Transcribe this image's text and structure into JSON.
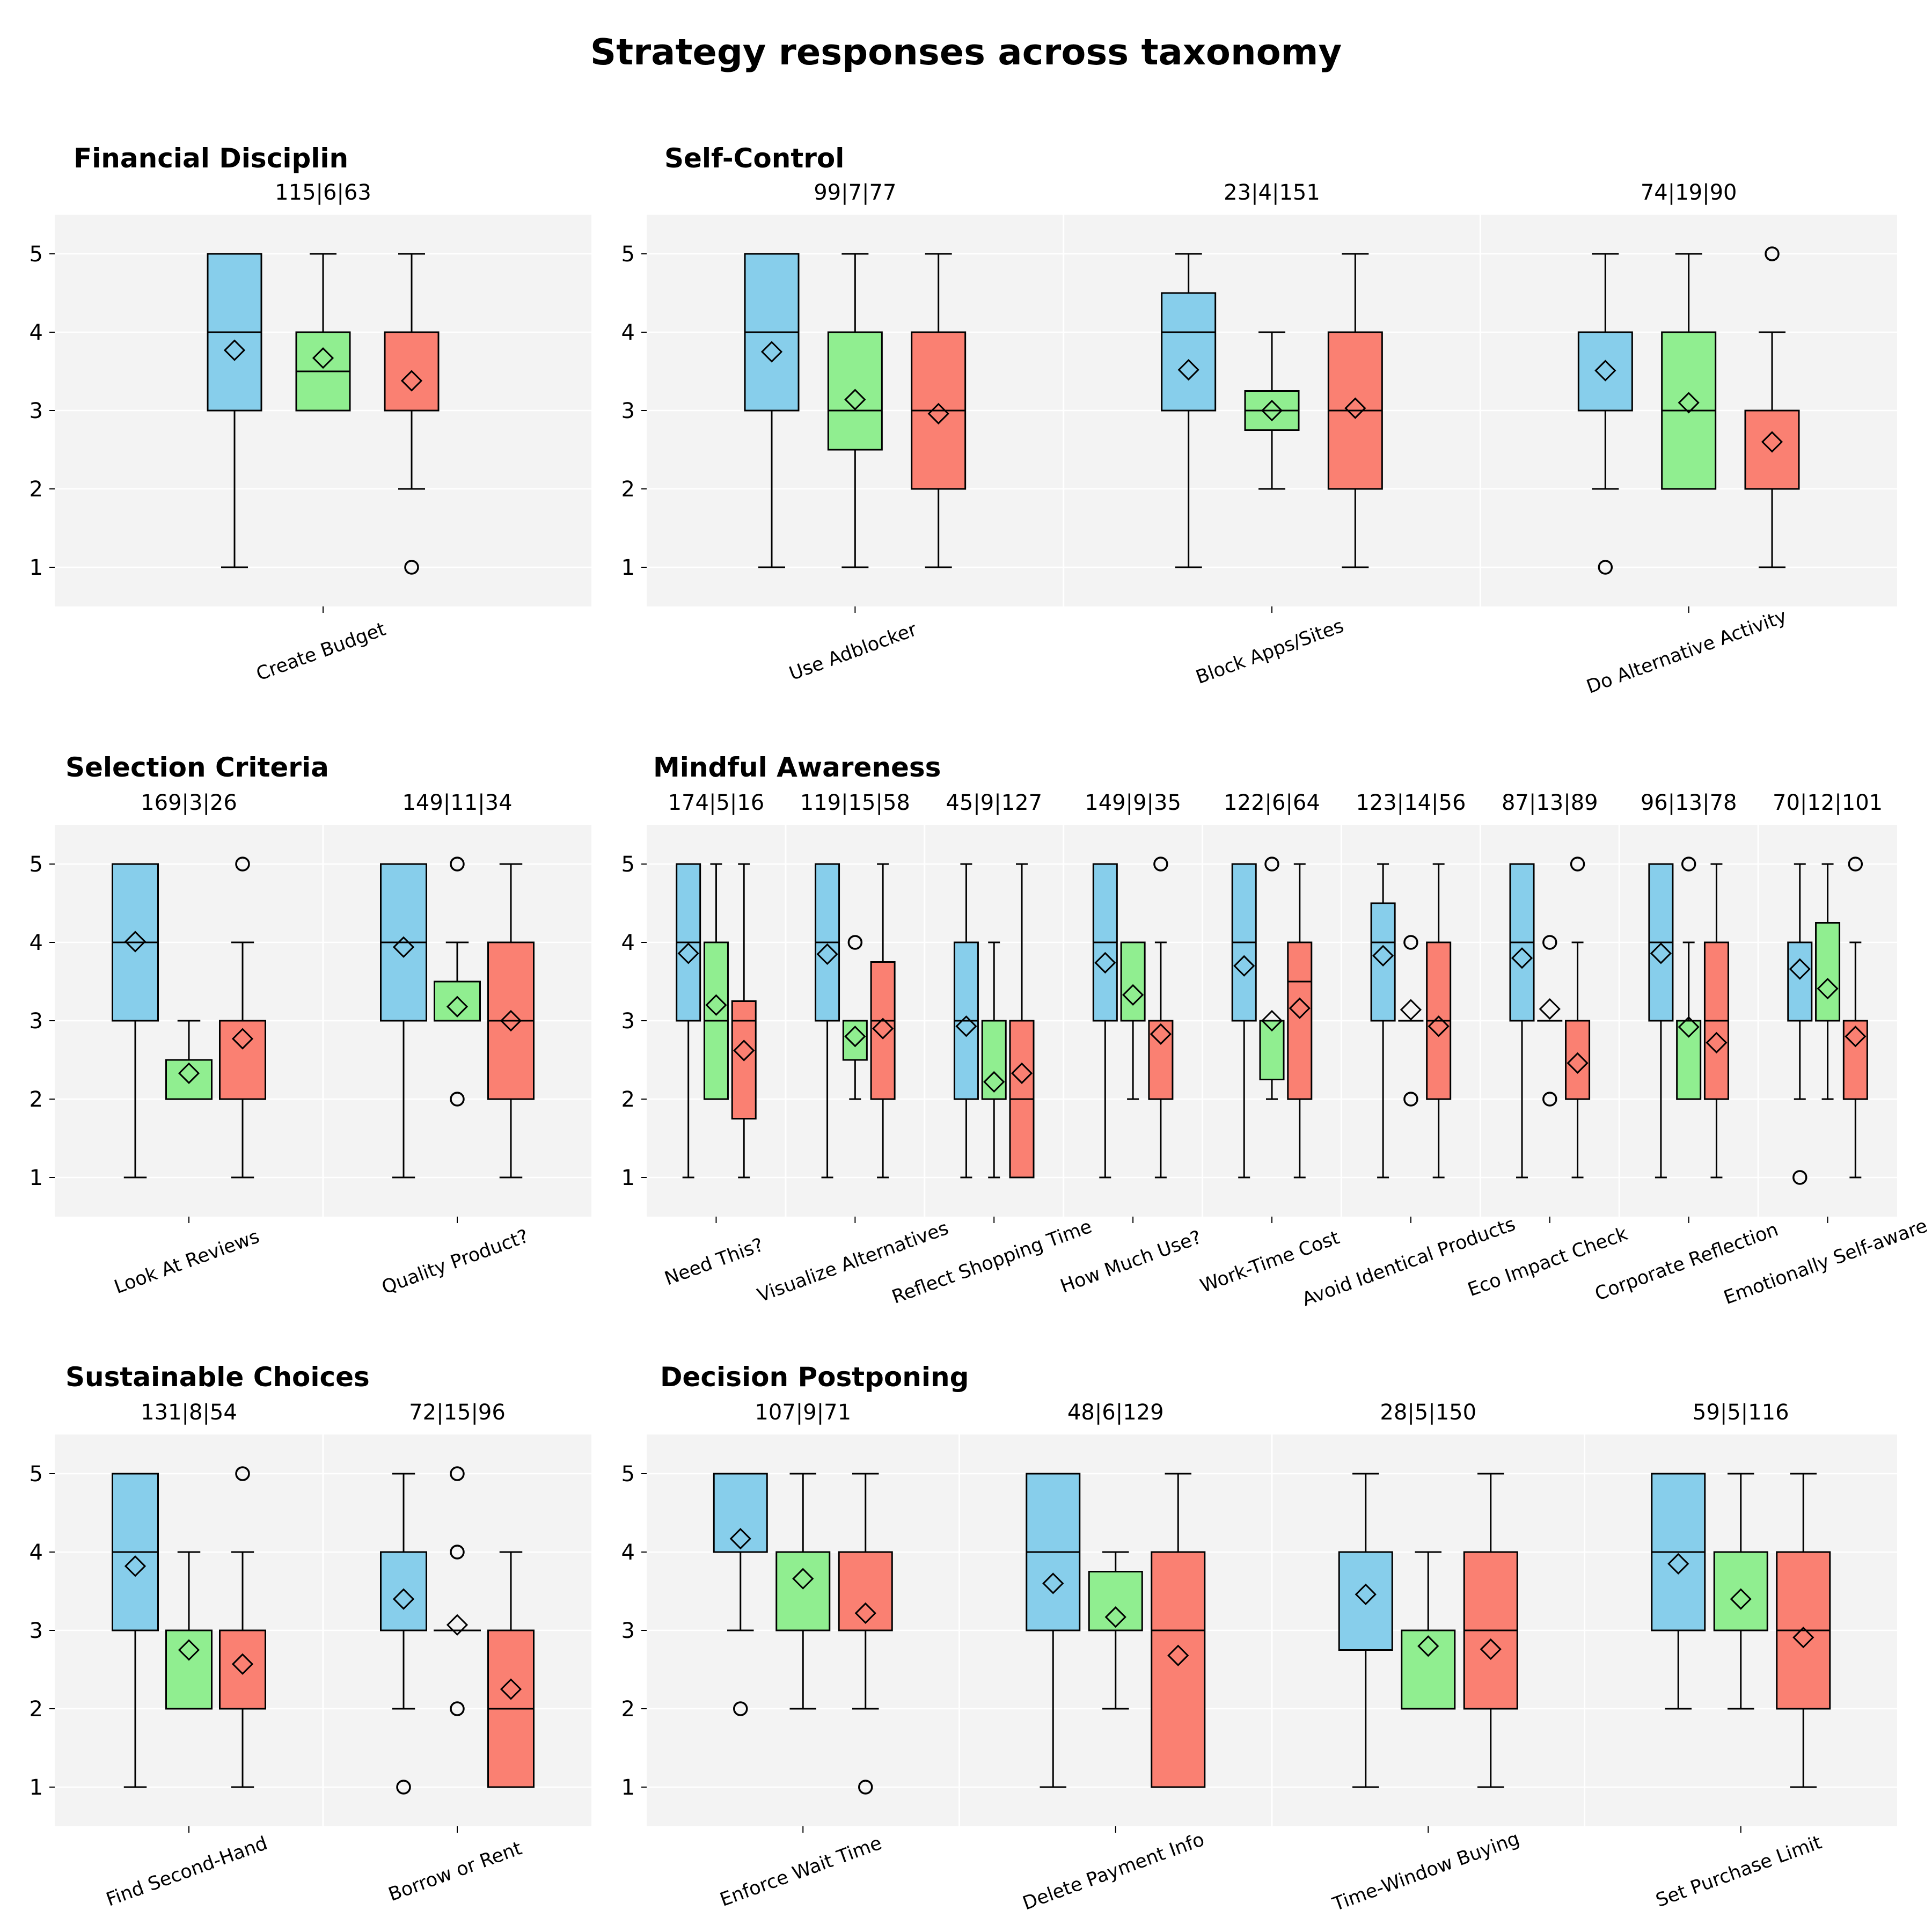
{
  "title": "Strategy responses across taxonomy",
  "colors": {
    "plot_background": "#f3f3f3",
    "grid": "#ffffff",
    "box_series": [
      "#87ceeb",
      "#90ee90",
      "#fa8072"
    ],
    "stroke": "#000000",
    "mean_marker_fill": "none"
  },
  "marker_legend": {
    "mean": "diamond-marker",
    "outlier": "circle-marker"
  },
  "chart_data": [
    {
      "type": "box",
      "title": "Financial Disciplin",
      "ylim": [
        0.5,
        5.5
      ],
      "yticks": [
        1,
        2,
        3,
        4,
        5
      ],
      "grid": true,
      "strategies": [
        {
          "name": "Create Budget",
          "counts": "115|6|63",
          "boxes": [
            {
              "q1": 3,
              "median": 4,
              "q3": 5,
              "whisker_low": 1,
              "whisker_high": 5,
              "mean": 3.77,
              "outliers": []
            },
            {
              "q1": 3,
              "median": 3.5,
              "q3": 4,
              "whisker_low": 3,
              "whisker_high": 5,
              "mean": 3.67,
              "outliers": []
            },
            {
              "q1": 3,
              "median": 3,
              "q3": 4,
              "whisker_low": 2,
              "whisker_high": 5,
              "mean": 3.38,
              "outliers": [
                1
              ]
            }
          ]
        }
      ]
    },
    {
      "type": "box",
      "title": "Self-Control",
      "ylim": [
        0.5,
        5.5
      ],
      "yticks": [
        1,
        2,
        3,
        4,
        5
      ],
      "grid": true,
      "strategies": [
        {
          "name": "Use Adblocker",
          "counts": "99|7|77",
          "boxes": [
            {
              "q1": 3,
              "median": 4,
              "q3": 5,
              "whisker_low": 1,
              "whisker_high": 5,
              "mean": 3.75,
              "outliers": []
            },
            {
              "q1": 2.5,
              "median": 3,
              "q3": 4,
              "whisker_low": 1,
              "whisker_high": 5,
              "mean": 3.14,
              "outliers": []
            },
            {
              "q1": 2,
              "median": 3,
              "q3": 4,
              "whisker_low": 1,
              "whisker_high": 5,
              "mean": 2.96,
              "outliers": []
            }
          ]
        },
        {
          "name": "Block Apps/Sites",
          "counts": "23|4|151",
          "boxes": [
            {
              "q1": 3,
              "median": 4,
              "q3": 4.5,
              "whisker_low": 1,
              "whisker_high": 5,
              "mean": 3.52,
              "outliers": []
            },
            {
              "q1": 2.75,
              "median": 3,
              "q3": 3.25,
              "whisker_low": 2,
              "whisker_high": 4,
              "mean": 3.0,
              "outliers": []
            },
            {
              "q1": 2,
              "median": 3,
              "q3": 4,
              "whisker_low": 1,
              "whisker_high": 5,
              "mean": 3.03,
              "outliers": []
            }
          ]
        },
        {
          "name": "Do Alternative Activity",
          "counts": "74|19|90",
          "boxes": [
            {
              "q1": 3,
              "median": 3,
              "q3": 4,
              "whisker_low": 2,
              "whisker_high": 5,
              "mean": 3.51,
              "outliers": [
                1
              ]
            },
            {
              "q1": 2,
              "median": 3,
              "q3": 4,
              "whisker_low": 2,
              "whisker_high": 5,
              "mean": 3.1,
              "outliers": []
            },
            {
              "q1": 2,
              "median": 2,
              "q3": 3,
              "whisker_low": 1,
              "whisker_high": 4,
              "mean": 2.6,
              "outliers": [
                5
              ]
            }
          ]
        }
      ]
    },
    {
      "type": "box",
      "title": "Selection Criteria",
      "ylim": [
        0.5,
        5.5
      ],
      "yticks": [
        1,
        2,
        3,
        4,
        5
      ],
      "grid": true,
      "strategies": [
        {
          "name": "Look At Reviews",
          "counts": "169|3|26",
          "boxes": [
            {
              "q1": 3,
              "median": 4,
              "q3": 5,
              "whisker_low": 1,
              "whisker_high": 5,
              "mean": 4.01,
              "outliers": []
            },
            {
              "q1": 2,
              "median": 2,
              "q3": 2.5,
              "whisker_low": 2,
              "whisker_high": 3,
              "mean": 2.33,
              "outliers": []
            },
            {
              "q1": 2,
              "median": 3,
              "q3": 3,
              "whisker_low": 1,
              "whisker_high": 4,
              "mean": 2.77,
              "outliers": [
                5
              ]
            }
          ]
        },
        {
          "name": "Quality Product?",
          "counts": "149|11|34",
          "boxes": [
            {
              "q1": 3,
              "median": 4,
              "q3": 5,
              "whisker_low": 1,
              "whisker_high": 5,
              "mean": 3.94,
              "outliers": []
            },
            {
              "q1": 3,
              "median": 3,
              "q3": 3.5,
              "whisker_low": 3,
              "whisker_high": 4,
              "mean": 3.18,
              "outliers": [
                5,
                2
              ]
            },
            {
              "q1": 2,
              "median": 3,
              "q3": 4,
              "whisker_low": 1,
              "whisker_high": 5,
              "mean": 3.0,
              "outliers": []
            }
          ]
        }
      ]
    },
    {
      "type": "box",
      "title": "Mindful Awareness",
      "ylim": [
        0.5,
        5.5
      ],
      "yticks": [
        1,
        2,
        3,
        4,
        5
      ],
      "grid": true,
      "strategies": [
        {
          "name": "Need This?",
          "counts": "174|5|16",
          "boxes": [
            {
              "q1": 3,
              "median": 4,
              "q3": 5,
              "whisker_low": 1,
              "whisker_high": 5,
              "mean": 3.86,
              "outliers": []
            },
            {
              "q1": 2,
              "median": 3,
              "q3": 4,
              "whisker_low": 2,
              "whisker_high": 5,
              "mean": 3.2,
              "outliers": []
            },
            {
              "q1": 1.75,
              "median": 3,
              "q3": 3.25,
              "whisker_low": 1,
              "whisker_high": 5,
              "mean": 2.62,
              "outliers": []
            }
          ]
        },
        {
          "name": "Visualize Alternatives",
          "counts": "119|15|58",
          "boxes": [
            {
              "q1": 3,
              "median": 4,
              "q3": 5,
              "whisker_low": 1,
              "whisker_high": 5,
              "mean": 3.85,
              "outliers": []
            },
            {
              "q1": 2.5,
              "median": 3,
              "q3": 3,
              "whisker_low": 2,
              "whisker_high": 3,
              "mean": 2.8,
              "outliers": [
                4
              ]
            },
            {
              "q1": 2,
              "median": 3,
              "q3": 3.75,
              "whisker_low": 1,
              "whisker_high": 5,
              "mean": 2.9,
              "outliers": []
            }
          ]
        },
        {
          "name": "Reflect Shopping Time",
          "counts": "45|9|127",
          "boxes": [
            {
              "q1": 2,
              "median": 3,
              "q3": 4,
              "whisker_low": 1,
              "whisker_high": 5,
              "mean": 2.93,
              "outliers": []
            },
            {
              "q1": 2,
              "median": 2,
              "q3": 3,
              "whisker_low": 1,
              "whisker_high": 4,
              "mean": 2.22,
              "outliers": []
            },
            {
              "q1": 1,
              "median": 2,
              "q3": 3,
              "whisker_low": 1,
              "whisker_high": 5,
              "mean": 2.33,
              "outliers": []
            }
          ]
        },
        {
          "name": "How Much Use?",
          "counts": "149|9|35",
          "boxes": [
            {
              "q1": 3,
              "median": 4,
              "q3": 5,
              "whisker_low": 1,
              "whisker_high": 5,
              "mean": 3.74,
              "outliers": []
            },
            {
              "q1": 3,
              "median": 3,
              "q3": 4,
              "whisker_low": 2,
              "whisker_high": 4,
              "mean": 3.33,
              "outliers": []
            },
            {
              "q1": 2,
              "median": 3,
              "q3": 3,
              "whisker_low": 1,
              "whisker_high": 4,
              "mean": 2.83,
              "outliers": [
                5
              ]
            }
          ]
        },
        {
          "name": "Work-Time Cost",
          "counts": "122|6|64",
          "boxes": [
            {
              "q1": 3,
              "median": 4,
              "q3": 5,
              "whisker_low": 1,
              "whisker_high": 5,
              "mean": 3.7,
              "outliers": []
            },
            {
              "q1": 2.25,
              "median": 3,
              "q3": 3,
              "whisker_low": 2,
              "whisker_high": 3,
              "mean": 3.0,
              "outliers": [
                5
              ]
            },
            {
              "q1": 2,
              "median": 3.5,
              "q3": 4,
              "whisker_low": 1,
              "whisker_high": 5,
              "mean": 3.16,
              "outliers": []
            }
          ]
        },
        {
          "name": "Avoid Identical Products",
          "counts": "123|14|56",
          "boxes": [
            {
              "q1": 3,
              "median": 4,
              "q3": 4.5,
              "whisker_low": 1,
              "whisker_high": 5,
              "mean": 3.83,
              "outliers": []
            },
            {
              "q1": 3,
              "median": 3,
              "q3": 3,
              "whisker_low": 3,
              "whisker_high": 3,
              "mean": 3.14,
              "outliers": [
                4,
                2
              ]
            },
            {
              "q1": 2,
              "median": 3,
              "q3": 4,
              "whisker_low": 1,
              "whisker_high": 5,
              "mean": 2.93,
              "outliers": []
            }
          ]
        },
        {
          "name": "Eco Impact Check",
          "counts": "87|13|89",
          "boxes": [
            {
              "q1": 3,
              "median": 4,
              "q3": 5,
              "whisker_low": 1,
              "whisker_high": 5,
              "mean": 3.8,
              "outliers": []
            },
            {
              "q1": 3,
              "median": 3,
              "q3": 3,
              "whisker_low": 3,
              "whisker_high": 3,
              "mean": 3.15,
              "outliers": [
                4,
                2
              ]
            },
            {
              "q1": 2,
              "median": 2,
              "q3": 3,
              "whisker_low": 1,
              "whisker_high": 4,
              "mean": 2.46,
              "outliers": [
                5
              ]
            }
          ]
        },
        {
          "name": "Corporate Reflection",
          "counts": "96|13|78",
          "boxes": [
            {
              "q1": 3,
              "median": 4,
              "q3": 5,
              "whisker_low": 1,
              "whisker_high": 5,
              "mean": 3.86,
              "outliers": []
            },
            {
              "q1": 2,
              "median": 3,
              "q3": 3,
              "whisker_low": 2,
              "whisker_high": 4,
              "mean": 2.92,
              "outliers": [
                5
              ]
            },
            {
              "q1": 2,
              "median": 3,
              "q3": 4,
              "whisker_low": 1,
              "whisker_high": 5,
              "mean": 2.72,
              "outliers": []
            }
          ]
        },
        {
          "name": "Emotionally Self-aware",
          "counts": "70|12|101",
          "boxes": [
            {
              "q1": 3,
              "median": 4,
              "q3": 4,
              "whisker_low": 2,
              "whisker_high": 5,
              "mean": 3.66,
              "outliers": [
                1
              ]
            },
            {
              "q1": 3,
              "median": 3,
              "q3": 4.25,
              "whisker_low": 2,
              "whisker_high": 5,
              "mean": 3.41,
              "outliers": []
            },
            {
              "q1": 2,
              "median": 3,
              "q3": 3,
              "whisker_low": 1,
              "whisker_high": 4,
              "mean": 2.8,
              "outliers": [
                5
              ]
            }
          ]
        }
      ]
    },
    {
      "type": "box",
      "title": "Sustainable Choices",
      "ylim": [
        0.5,
        5.5
      ],
      "yticks": [
        1,
        2,
        3,
        4,
        5
      ],
      "grid": true,
      "strategies": [
        {
          "name": "Find Second-Hand",
          "counts": "131|8|54",
          "boxes": [
            {
              "q1": 3,
              "median": 4,
              "q3": 5,
              "whisker_low": 1,
              "whisker_high": 5,
              "mean": 3.82,
              "outliers": []
            },
            {
              "q1": 2,
              "median": 3,
              "q3": 3,
              "whisker_low": 2,
              "whisker_high": 4,
              "mean": 2.75,
              "outliers": []
            },
            {
              "q1": 2,
              "median": 3,
              "q3": 3,
              "whisker_low": 1,
              "whisker_high": 4,
              "mean": 2.57,
              "outliers": [
                5
              ]
            }
          ]
        },
        {
          "name": "Borrow or Rent",
          "counts": "72|15|96",
          "boxes": [
            {
              "q1": 3,
              "median": 4,
              "q3": 4,
              "whisker_low": 2,
              "whisker_high": 5,
              "mean": 3.4,
              "outliers": [
                1
              ]
            },
            {
              "q1": 3,
              "median": 3,
              "q3": 3,
              "whisker_low": 3,
              "whisker_high": 3,
              "mean": 3.07,
              "outliers": [
                5,
                4,
                2
              ]
            },
            {
              "q1": 1,
              "median": 2,
              "q3": 3,
              "whisker_low": 1,
              "whisker_high": 4,
              "mean": 2.25,
              "outliers": []
            }
          ]
        }
      ]
    },
    {
      "type": "box",
      "title": "Decision Postponing",
      "ylim": [
        0.5,
        5.5
      ],
      "yticks": [
        1,
        2,
        3,
        4,
        5
      ],
      "grid": true,
      "strategies": [
        {
          "name": "Enforce Wait Time",
          "counts": "107|9|71",
          "boxes": [
            {
              "q1": 4,
              "median": 5,
              "q3": 5,
              "whisker_low": 3,
              "whisker_high": 5,
              "mean": 4.17,
              "outliers": [
                2
              ]
            },
            {
              "q1": 3,
              "median": 4,
              "q3": 4,
              "whisker_low": 2,
              "whisker_high": 5,
              "mean": 3.66,
              "outliers": []
            },
            {
              "q1": 3,
              "median": 3,
              "q3": 4,
              "whisker_low": 2,
              "whisker_high": 5,
              "mean": 3.22,
              "outliers": [
                1
              ]
            }
          ]
        },
        {
          "name": "Delete Payment Info",
          "counts": "48|6|129",
          "boxes": [
            {
              "q1": 3,
              "median": 4,
              "q3": 5,
              "whisker_low": 1,
              "whisker_high": 5,
              "mean": 3.6,
              "outliers": []
            },
            {
              "q1": 3,
              "median": 3,
              "q3": 3.75,
              "whisker_low": 2,
              "whisker_high": 4,
              "mean": 3.17,
              "outliers": []
            },
            {
              "q1": 1,
              "median": 3,
              "q3": 4,
              "whisker_low": 1,
              "whisker_high": 5,
              "mean": 2.68,
              "outliers": []
            }
          ]
        },
        {
          "name": "Time-Window Buying",
          "counts": "28|5|150",
          "boxes": [
            {
              "q1": 2.75,
              "median": 4,
              "q3": 4,
              "whisker_low": 1,
              "whisker_high": 5,
              "mean": 3.46,
              "outliers": []
            },
            {
              "q1": 2,
              "median": 3,
              "q3": 3,
              "whisker_low": 2,
              "whisker_high": 4,
              "mean": 2.8,
              "outliers": []
            },
            {
              "q1": 2,
              "median": 3,
              "q3": 4,
              "whisker_low": 1,
              "whisker_high": 5,
              "mean": 2.76,
              "outliers": []
            }
          ]
        },
        {
          "name": "Set Purchase Limit",
          "counts": "59|5|116",
          "boxes": [
            {
              "q1": 3,
              "median": 4,
              "q3": 5,
              "whisker_low": 2,
              "whisker_high": 5,
              "mean": 3.85,
              "outliers": []
            },
            {
              "q1": 3,
              "median": 3,
              "q3": 4,
              "whisker_low": 2,
              "whisker_high": 5,
              "mean": 3.4,
              "outliers": []
            },
            {
              "q1": 2,
              "median": 3,
              "q3": 4,
              "whisker_low": 1,
              "whisker_high": 5,
              "mean": 2.91,
              "outliers": []
            }
          ]
        }
      ]
    }
  ]
}
